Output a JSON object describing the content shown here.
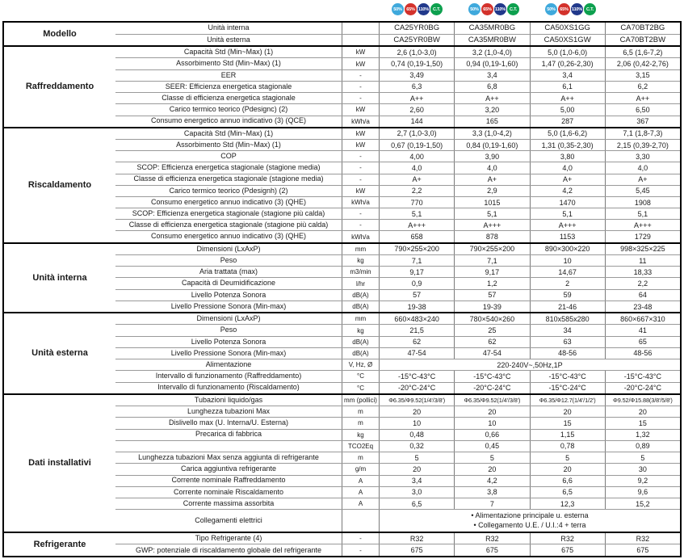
{
  "header": {
    "badges": [
      {
        "label": "50%",
        "color": "#3fa9dc"
      },
      {
        "label": "65%",
        "color": "#d3322c"
      },
      {
        "label": "110%",
        "color": "#21398b"
      },
      {
        "label": "C.T.",
        "color": "#0da04e"
      }
    ],
    "badge_groups": [
      {
        "column": 0
      },
      {
        "column": 1
      },
      {
        "column": 2
      }
    ]
  },
  "table": {
    "sections": [
      {
        "name": "Modello",
        "rows": [
          {
            "label": "Unità interna",
            "unit": "",
            "values": [
              "CA25YR0BG",
              "CA35MR0BG",
              "CA50XS1GG",
              "CA70BT2BG"
            ]
          },
          {
            "label": "Unità esterna",
            "unit": "",
            "values": [
              "CA25YR0BW",
              "CA35MR0BW",
              "CA50XS1GW",
              "CA70BT2BW"
            ]
          }
        ]
      },
      {
        "name": "Raffreddamento",
        "rows": [
          {
            "label": "Capacità Std (Min~Max) (1)",
            "unit": "kW",
            "values": [
              "2,6 (1,0-3,0)",
              "3,2 (1,0-4,0)",
              "5,0 (1,0-6,0)",
              "6,5 (1,6-7,2)"
            ]
          },
          {
            "label": "Assorbimento Std (Min~Max) (1)",
            "unit": "kW",
            "values": [
              "0,74 (0,19-1,50)",
              "0,94 (0,19-1,60)",
              "1,47 (0,26-2,30)",
              "2,06 (0,42-2,76)"
            ]
          },
          {
            "label": "EER",
            "unit": "-",
            "values": [
              "3,49",
              "3,4",
              "3,4",
              "3,15"
            ]
          },
          {
            "label": "SEER: Efficienza energetica stagionale",
            "unit": "-",
            "values": [
              "6,3",
              "6,8",
              "6,1",
              "6,2"
            ]
          },
          {
            "label": "Classe di efficienza energetica stagionale",
            "unit": "-",
            "values": [
              "A++",
              "A++",
              "A++",
              "A++"
            ]
          },
          {
            "label": "Carico termico teorico (Pdesignc) (2)",
            "unit": "kW",
            "values": [
              "2,60",
              "3,20",
              "5,00",
              "6,50"
            ]
          },
          {
            "label": "Consumo energetico annuo indicativo (3) (QCE)",
            "unit": "kWh/a",
            "values": [
              "144",
              "165",
              "287",
              "367"
            ]
          }
        ]
      },
      {
        "name": "Riscaldamento",
        "rows": [
          {
            "label": "Capacità Std (Min~Max) (1)",
            "unit": "kW",
            "values": [
              "2,7 (1,0-3,0)",
              "3,3 (1,0-4,2)",
              "5,0 (1,6-6,2)",
              "7,1 (1,8-7,3)"
            ]
          },
          {
            "label": "Assorbimento Std (Min~Max) (1)",
            "unit": "kW",
            "values": [
              "0,67 (0,19-1,50)",
              "0,84 (0,19-1,60)",
              "1,31 (0,35-2,30)",
              "2,15 (0,39-2,70)"
            ]
          },
          {
            "label": "COP",
            "unit": "-",
            "values": [
              "4,00",
              "3,90",
              "3,80",
              "3,30"
            ]
          },
          {
            "label": "SCOP: Efficienza energetica stagionale (stagione media)",
            "unit": "-",
            "values": [
              "4,0",
              "4,0",
              "4,0",
              "4,0"
            ]
          },
          {
            "label": "Classe di efficienza energetica stagionale (stagione media)",
            "unit": "-",
            "values": [
              "A+",
              "A+",
              "A+",
              "A+"
            ]
          },
          {
            "label": "Carico termico teorico (Pdesignh) (2)",
            "unit": "kW",
            "values": [
              "2,2",
              "2,9",
              "4,2",
              "5,45"
            ]
          },
          {
            "label": "Consumo energetico annuo indicativo (3) (QHE)",
            "unit": "kWh/a",
            "values": [
              "770",
              "1015",
              "1470",
              "1908"
            ]
          },
          {
            "label": "SCOP: Efficienza energetica stagionale (stagione più calda)",
            "unit": "-",
            "values": [
              "5,1",
              "5,1",
              "5,1",
              "5,1"
            ]
          },
          {
            "label": "Classe di efficienza energetica stagionale (stagione più calda)",
            "unit": "-",
            "values": [
              "A+++",
              "A+++",
              "A+++",
              "A+++"
            ]
          },
          {
            "label": "Consumo energetico annuo indicativo (3) (QHE)",
            "unit": "kWh/a",
            "values": [
              "658",
              "878",
              "1153",
              "1729"
            ]
          }
        ]
      },
      {
        "name": "Unità interna",
        "rows": [
          {
            "label": "Dimensioni (LxAxP)",
            "unit": "mm",
            "values": [
              "790×255×200",
              "790×255×200",
              "890×300×220",
              "998×325×225"
            ]
          },
          {
            "label": "Peso",
            "unit": "kg",
            "values": [
              "7,1",
              "7,1",
              "10",
              "11"
            ]
          },
          {
            "label": "Aria trattata (max)",
            "unit": "m3/min",
            "values": [
              "9,17",
              "9,17",
              "14,67",
              "18,33"
            ]
          },
          {
            "label": "Capacità di Deumidificazione",
            "unit": "l/hr",
            "values": [
              "0,9",
              "1,2",
              "2",
              "2,2"
            ]
          },
          {
            "label": "Livello Potenza Sonora",
            "unit": "dB(A)",
            "values": [
              "57",
              "57",
              "59",
              "64"
            ]
          },
          {
            "label": "Livello Pressione Sonora (Min-max)",
            "unit": "dB(A)",
            "values": [
              "19-38",
              "19-39",
              "21-46",
              "23-48"
            ]
          }
        ]
      },
      {
        "name": "Unità esterna",
        "rows": [
          {
            "label": "Dimensioni (LxAxP)",
            "unit": "mm",
            "values": [
              "660×483×240",
              "780×540×260",
              "810x585x280",
              "860×667×310"
            ]
          },
          {
            "label": "Peso",
            "unit": "kg",
            "values": [
              "21,5",
              "25",
              "34",
              "41"
            ]
          },
          {
            "label": "Livello Potenza Sonora",
            "unit": "dB(A)",
            "values": [
              "62",
              "62",
              "63",
              "65"
            ]
          },
          {
            "label": "Livello Pressione Sonora (Min-max)",
            "unit": "dB(A)",
            "values": [
              "47-54",
              "47-54",
              "48-56",
              "48-56"
            ]
          },
          {
            "label": "Alimentazione",
            "unit": "V, Hz, Ø",
            "span": "220-240V~,50Hz,1P"
          },
          {
            "label": "Intervallo di funzionamento (Raffreddamento)",
            "unit": "°C",
            "values": [
              "-15°C-43°C",
              "-15°C-43°C",
              "-15°C-43°C",
              "-15°C-43°C"
            ]
          },
          {
            "label": "Intervallo di funzionamento (Riscaldamento)",
            "unit": "°C",
            "values": [
              "-20°C-24°C",
              "-20°C-24°C",
              "-15°C-24°C",
              "-20°C-24°C"
            ]
          }
        ]
      },
      {
        "name": "Dati installativi",
        "rows": [
          {
            "label": "Tubazioni liquido/gas",
            "unit": "mm (pollici)",
            "small": true,
            "values": [
              "Φ6.35/Φ9.52(1/4'/3/8')",
              "Φ6.35/Φ9.52(1/4'/3/8')",
              "Φ6.35/Φ12.7(1/4'/1/2')",
              "Φ9.52/Φ15.88(3/8'/5/8')"
            ]
          },
          {
            "label": "Lunghezza tubazioni Max",
            "unit": "m",
            "values": [
              "20",
              "20",
              "20",
              "20"
            ]
          },
          {
            "label": "Dislivello max (U. Interna/U. Esterna)",
            "unit": "m",
            "values": [
              "10",
              "10",
              "15",
              "15"
            ]
          },
          {
            "label": "Precarica di fabbrica",
            "unit": "kg",
            "values": [
              "0,48",
              "0,66",
              "1,15",
              "1,32"
            ]
          },
          {
            "label": "",
            "unit": "TCO2Eq",
            "values": [
              "0,32",
              "0,45",
              "0,78",
              "0,89"
            ]
          },
          {
            "label": "Lunghezza tubazioni Max senza aggiunta di refrigerante",
            "unit": "m",
            "values": [
              "5",
              "5",
              "5",
              "5"
            ]
          },
          {
            "label": "Carica aggiuntiva refrigerante",
            "unit": "g/m",
            "values": [
              "20",
              "20",
              "20",
              "30"
            ]
          },
          {
            "label": "Corrente nominale Raffreddamento",
            "unit": "A",
            "values": [
              "3,4",
              "4,2",
              "6,6",
              "9,2"
            ]
          },
          {
            "label": "Corrente nominale Riscaldamento",
            "unit": "A",
            "values": [
              "3,0",
              "3,8",
              "6,5",
              "9,6"
            ]
          },
          {
            "label": "Corrente massima assorbita",
            "unit": "A",
            "values": [
              "6,5",
              "7",
              "12,3",
              "15,2"
            ]
          },
          {
            "label": "Collegamenti elettrici",
            "unit": "",
            "tall": true,
            "span_lines": [
              "• Alimentazione principale u. esterna",
              "• Collegamento U.E. / U.I.:4 + terra"
            ]
          }
        ]
      },
      {
        "name": "Refrigerante",
        "rows": [
          {
            "label": "Tipo Refrigerante (4)",
            "unit": "-",
            "values": [
              "R32",
              "R32",
              "R32",
              "R32"
            ]
          },
          {
            "label": "GWP: potenziale di riscaldamento globale del refrigerante",
            "unit": "-",
            "values": [
              "675",
              "675",
              "675",
              "675"
            ]
          }
        ]
      }
    ]
  }
}
